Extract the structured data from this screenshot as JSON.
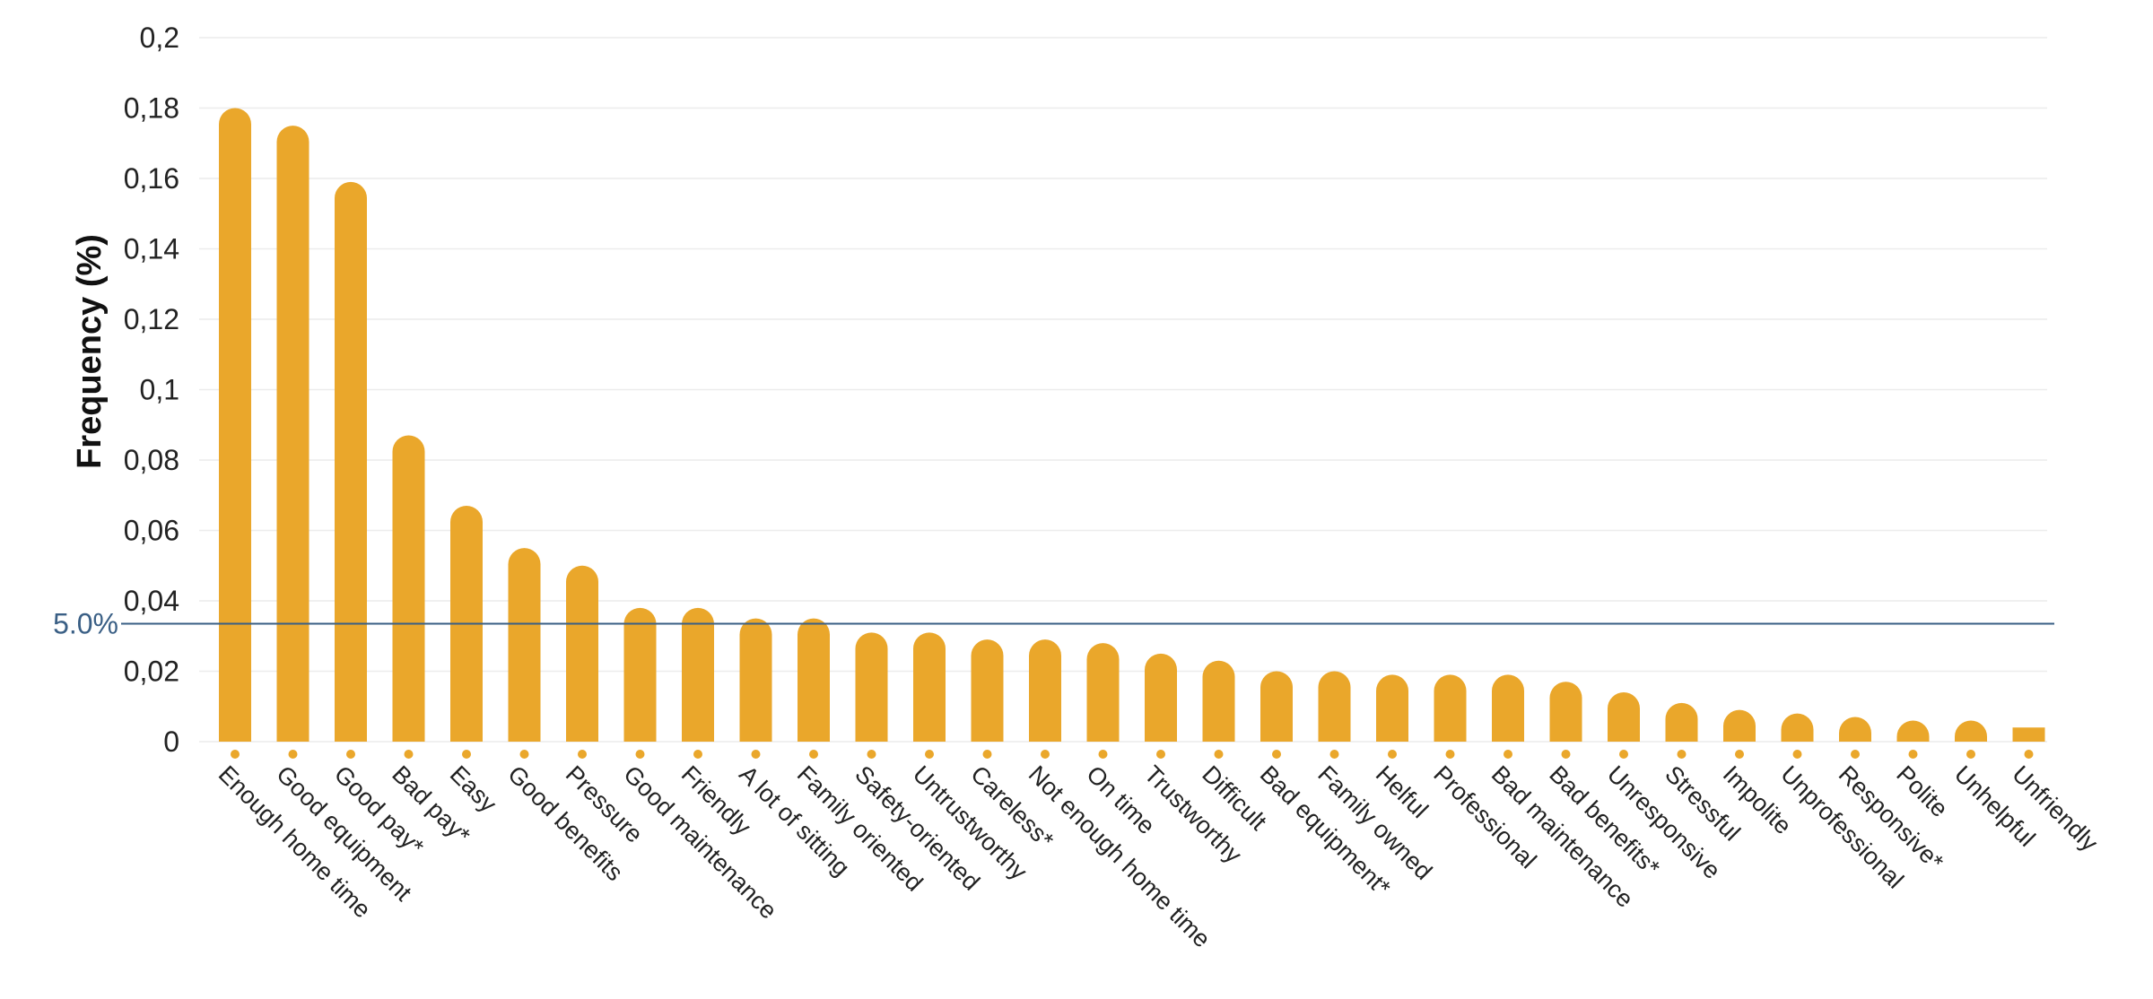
{
  "chart_data": {
    "type": "bar",
    "title": "",
    "xlabel": "",
    "ylabel": "Frequency (%)",
    "ylim": [
      0,
      0.2
    ],
    "yticks": [
      {
        "value": 0,
        "label": "0"
      },
      {
        "value": 0.02,
        "label": "0,02"
      },
      {
        "value": 0.04,
        "label": "0,04"
      },
      {
        "value": 0.06,
        "label": "0,06"
      },
      {
        "value": 0.08,
        "label": "0,08"
      },
      {
        "value": 0.1,
        "label": "0,1"
      },
      {
        "value": 0.12,
        "label": "0,12"
      },
      {
        "value": 0.14,
        "label": "0,14"
      },
      {
        "value": 0.16,
        "label": "0,16"
      },
      {
        "value": 0.18,
        "label": "0,18"
      },
      {
        "value": 0.2,
        "label": "0,2"
      }
    ],
    "grid": true,
    "categories": [
      "Enough home time",
      "Good equipment",
      "Good pay*",
      "Bad pay*",
      "Easy",
      "Good benefits",
      "Pressure",
      "Good maintenance",
      "Friendly",
      "A lot of sitting",
      "Family oriented",
      "Safety-oriented",
      "Untrustworthy",
      "Careless*",
      "Not enough home time",
      "On time",
      "Trustworthy",
      "Difficult",
      "Bad equipment*",
      "Family owned",
      "Helful",
      "Professional",
      "Bad maintenance",
      "Bad benefits*",
      "Unresponsive",
      "Stressful",
      "Impolite",
      "Unprofessional",
      "Responsive*",
      "Polite",
      "Unhelpful",
      "Unfriendly"
    ],
    "values": [
      0.18,
      0.175,
      0.159,
      0.087,
      0.067,
      0.055,
      0.05,
      0.038,
      0.038,
      0.035,
      0.035,
      0.031,
      0.031,
      0.029,
      0.029,
      0.028,
      0.025,
      0.023,
      0.02,
      0.02,
      0.019,
      0.019,
      0.019,
      0.017,
      0.014,
      0.011,
      0.009,
      0.008,
      0.007,
      0.006,
      0.006,
      0.004
    ],
    "reference_line": {
      "value": 0.0335,
      "label": "5.0%",
      "color": "#3a5f85"
    },
    "colors": {
      "bar": "#eaa72b",
      "grid": "#ececec"
    }
  }
}
